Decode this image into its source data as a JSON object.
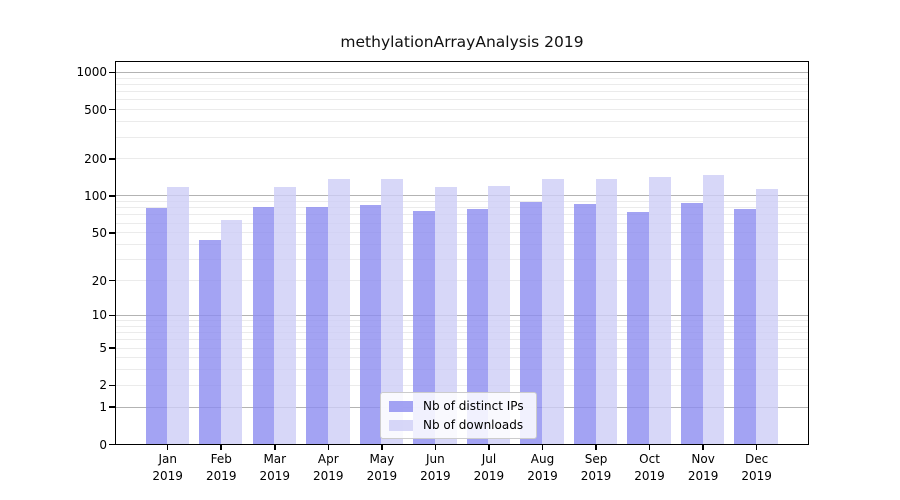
{
  "title": "methylationArrayAnalysis 2019",
  "chart_data": {
    "type": "bar",
    "title": "methylationArrayAnalysis 2019",
    "xlabel": "",
    "ylabel": "",
    "yscale": "log1p",
    "ylim": [
      0,
      1240
    ],
    "yticks": [
      0,
      1,
      2,
      5,
      10,
      20,
      50,
      100,
      200,
      500,
      1000
    ],
    "grid": {
      "on": true,
      "major_ticks": [
        1,
        10,
        100,
        1000
      ],
      "major_color": "#b3b3b3",
      "minor_color": "#ebebeb"
    },
    "categories": [
      "Jan 2019",
      "Feb 2019",
      "Mar 2019",
      "Apr 2019",
      "May 2019",
      "Jun 2019",
      "Jul 2019",
      "Aug 2019",
      "Sep 2019",
      "Oct 2019",
      "Nov 2019",
      "Dec 2019"
    ],
    "series": [
      {
        "name": "Nb of distinct IPs",
        "color": "rgba(140,140,240,0.8)",
        "values": [
          79,
          43,
          80,
          80,
          83,
          75,
          77,
          89,
          85,
          73,
          86,
          78
        ]
      },
      {
        "name": "Nb of downloads",
        "color": "rgba(205,205,246,0.8)",
        "values": [
          118,
          63,
          118,
          137,
          137,
          118,
          120,
          135,
          137,
          142,
          146,
          112
        ]
      }
    ],
    "legend_position": "lower center",
    "spine_color": "#000000"
  }
}
